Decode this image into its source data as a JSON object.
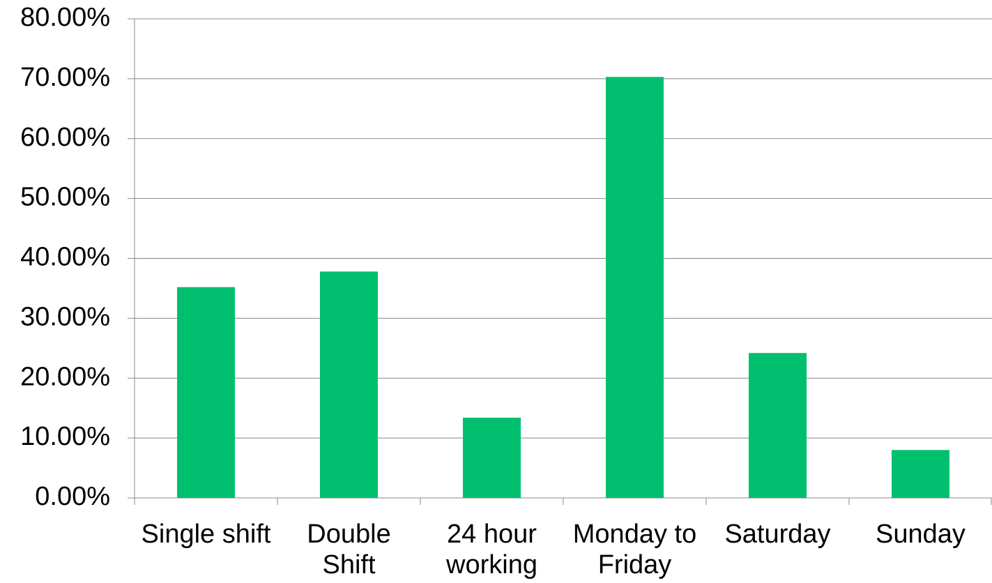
{
  "chart_data": {
    "type": "bar",
    "categories": [
      "Single shift",
      "Double Shift",
      "24 hour working",
      "Monday to Friday",
      "Saturday",
      "Sunday"
    ],
    "values": [
      35.2,
      37.8,
      13.4,
      70.3,
      24.2,
      8.0
    ],
    "color": "#00bf6f",
    "ylim": [
      0,
      80
    ],
    "yticks": [
      {
        "value": 0,
        "label": "0.00%"
      },
      {
        "value": 10,
        "label": "10.00%"
      },
      {
        "value": 20,
        "label": "20.00%"
      },
      {
        "value": 30,
        "label": "30.00%"
      },
      {
        "value": 40,
        "label": "40.00%"
      },
      {
        "value": 50,
        "label": "50.00%"
      },
      {
        "value": 60,
        "label": "60.00%"
      },
      {
        "value": 70,
        "label": "70.00%"
      },
      {
        "value": 80,
        "label": "80.00%"
      }
    ],
    "grid": true
  }
}
